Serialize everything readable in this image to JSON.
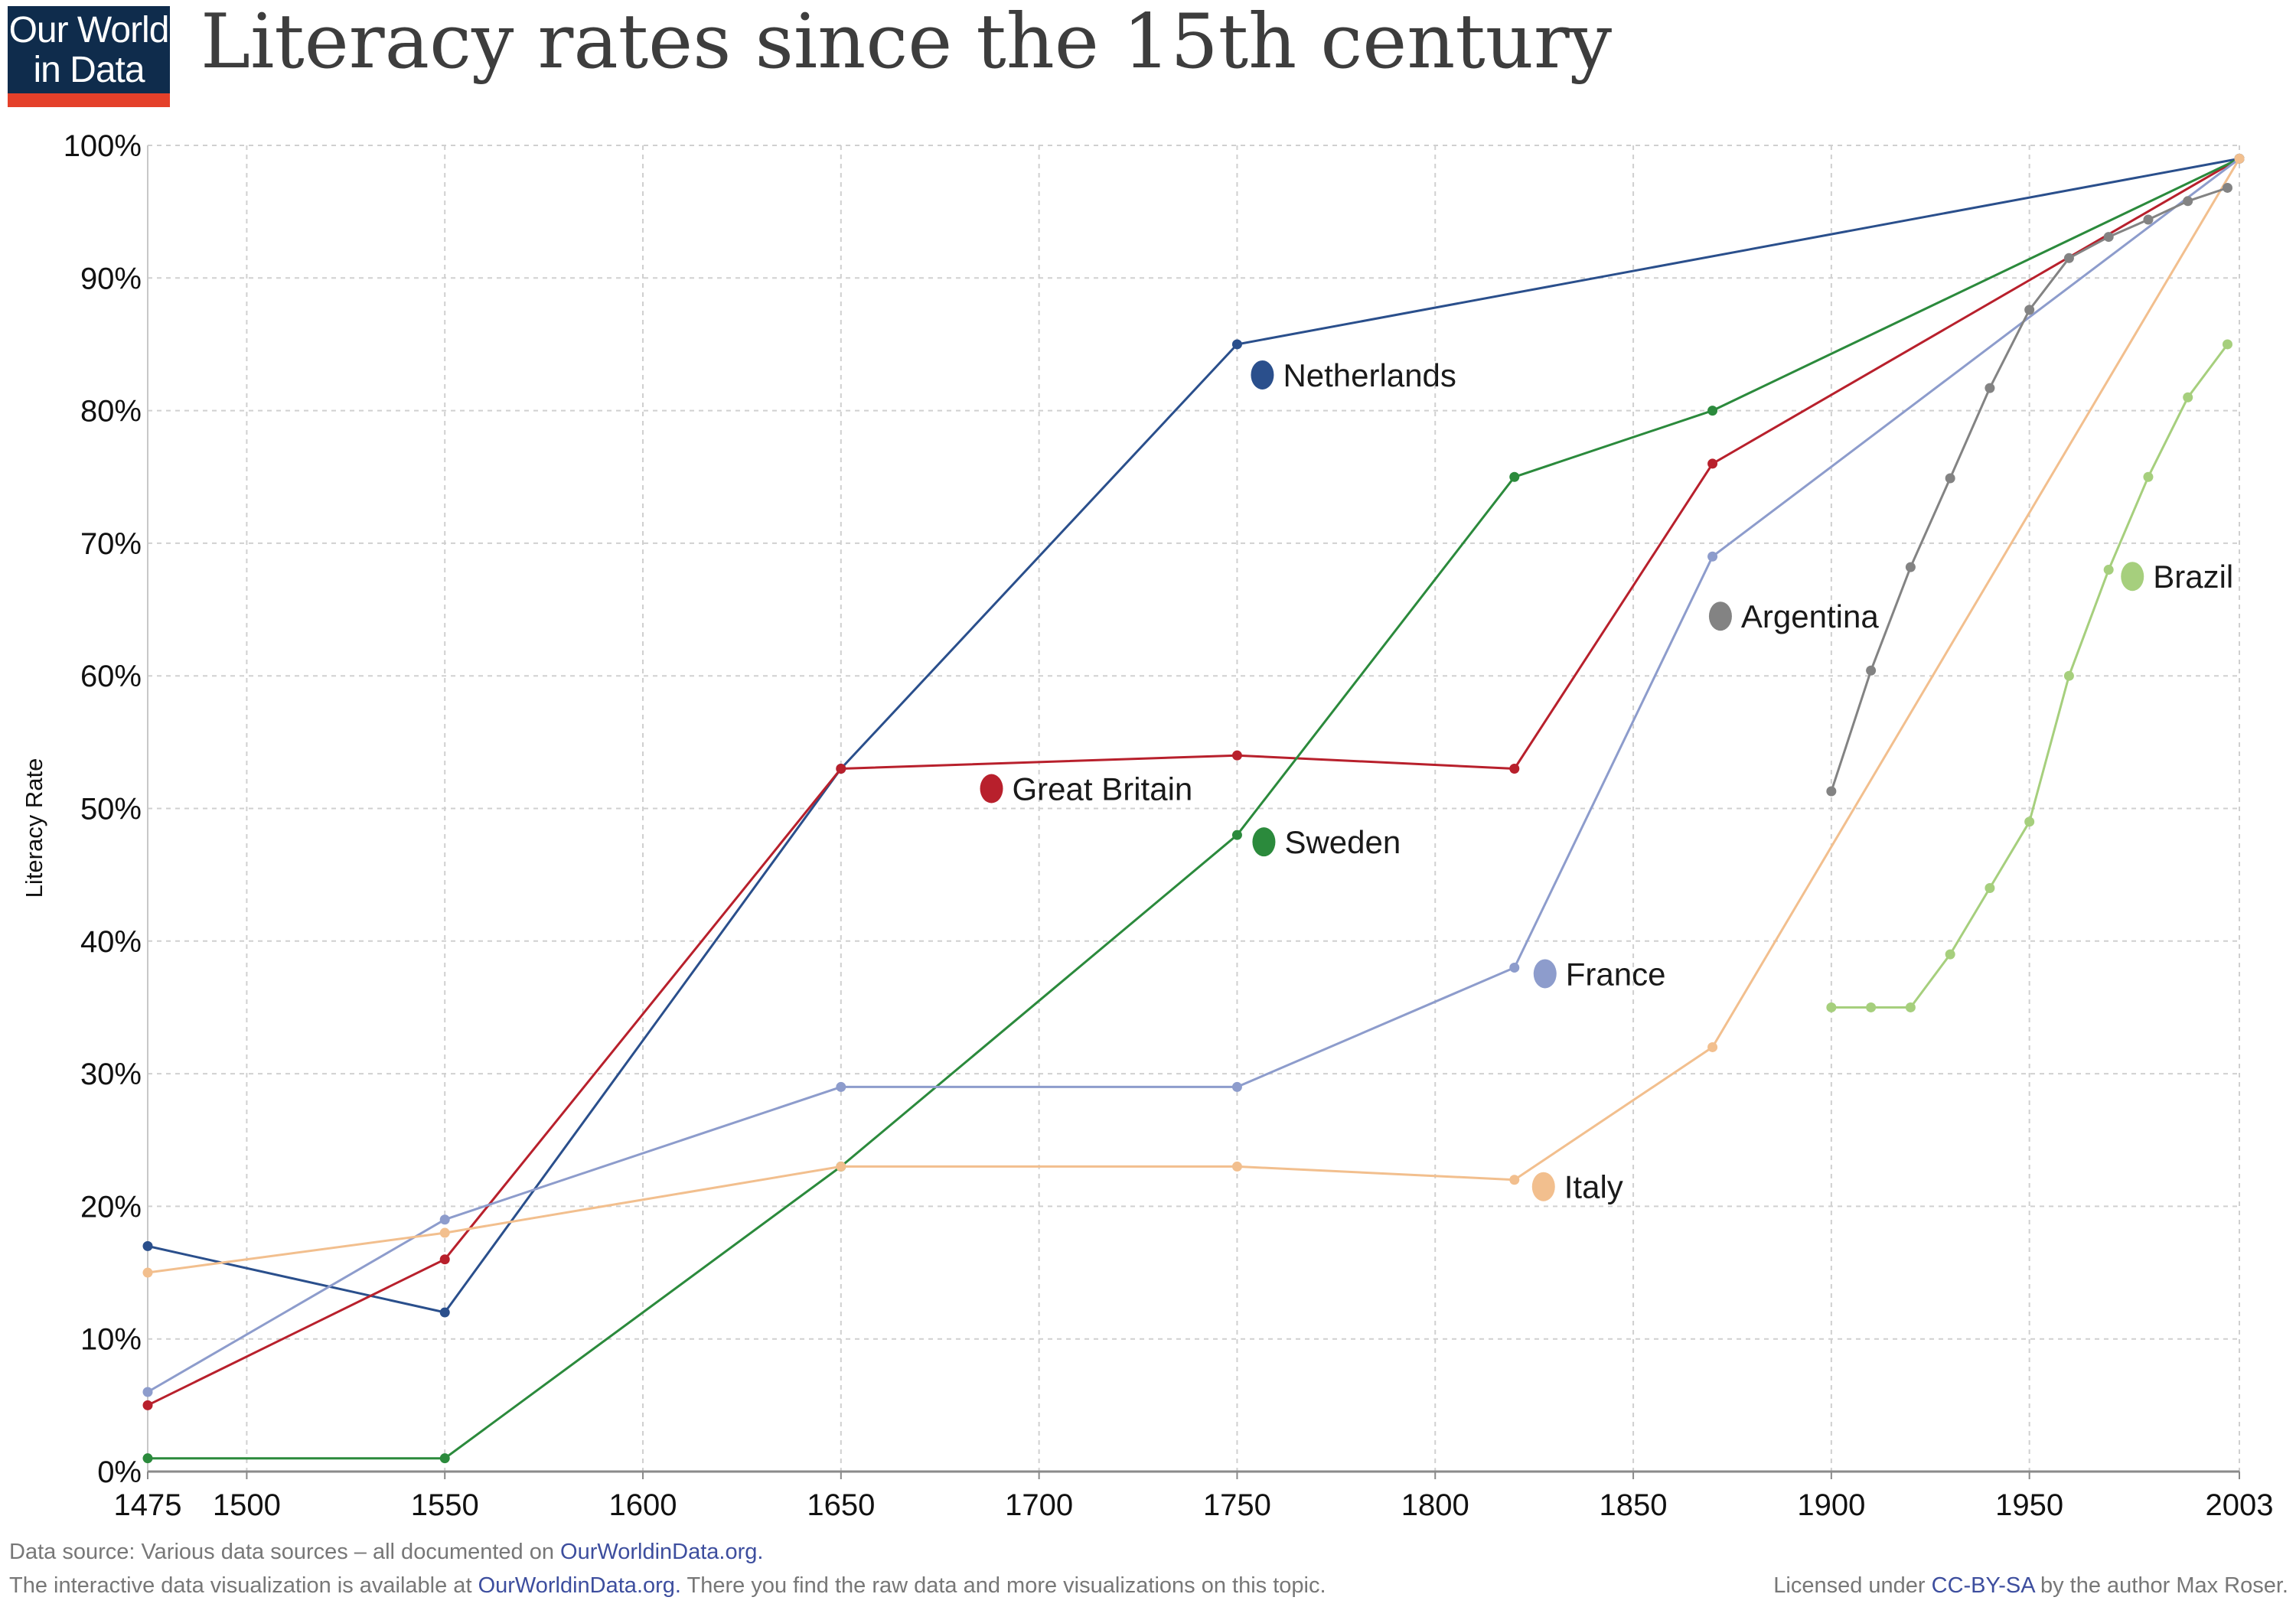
{
  "logo": {
    "line1": "Our World",
    "line2": "in Data"
  },
  "title": "Literacy rates since the 15th century",
  "footer": {
    "source_prefix": "Data source: Various data sources – all documented on ",
    "source_link": "OurWorldinData.org.",
    "interactive_prefix": "The interactive data visualization is available at ",
    "interactive_link": "OurWorldinData.org.",
    "interactive_suffix": " There you find the raw data and more visualizations on this topic.",
    "license_prefix": "Licensed under ",
    "license_link": "CC-BY-SA",
    "license_suffix": " by the author Max Roser."
  },
  "chart_data": {
    "type": "line",
    "title": "Literacy rates since the 15th century",
    "xlabel": "",
    "ylabel": "Literacy Rate",
    "xlim": [
      1475,
      2003
    ],
    "ylim": [
      0,
      100
    ],
    "xticks": [
      1475,
      1500,
      1550,
      1600,
      1650,
      1700,
      1750,
      1800,
      1850,
      1900,
      1950,
      2003
    ],
    "xtick_labels": [
      "1475",
      "1500",
      "1550",
      "1600",
      "1650",
      "1700",
      "1750",
      "1800",
      "1850",
      "1900",
      "1950",
      "2003"
    ],
    "yticks": [
      0,
      10,
      20,
      30,
      40,
      50,
      60,
      70,
      80,
      90,
      100
    ],
    "ytick_labels": [
      "0%",
      "10%",
      "20%",
      "30%",
      "40%",
      "50%",
      "60%",
      "70%",
      "80%",
      "90%",
      "100%"
    ],
    "grid": true,
    "series": [
      {
        "name": "Netherlands",
        "color": "#2a4f8c",
        "x": [
          1475,
          1550,
          1650,
          1750,
          2003
        ],
        "y": [
          17,
          12,
          53,
          85,
          99
        ]
      },
      {
        "name": "Great Britain",
        "color": "#b8202c",
        "x": [
          1475,
          1550,
          1650,
          1750,
          1820,
          1870,
          2003
        ],
        "y": [
          5,
          16,
          53,
          54,
          53,
          76,
          99
        ]
      },
      {
        "name": "Sweden",
        "color": "#2b8a3c",
        "x": [
          1475,
          1550,
          1650,
          1750,
          1820,
          1870,
          2003
        ],
        "y": [
          1,
          1,
          23,
          48,
          75,
          80,
          99
        ]
      },
      {
        "name": "France",
        "color": "#8d9ccc",
        "x": [
          1475,
          1550,
          1650,
          1750,
          1820,
          1870,
          2003
        ],
        "y": [
          6,
          19,
          29,
          29,
          38,
          69,
          99
        ]
      },
      {
        "name": "Italy",
        "color": "#f2bf8e",
        "x": [
          1475,
          1550,
          1650,
          1750,
          1820,
          1870,
          2003
        ],
        "y": [
          15,
          18,
          23,
          23,
          22,
          32,
          99
        ]
      },
      {
        "name": "Argentina",
        "color": "#838383",
        "x": [
          1900,
          1910,
          1920,
          1930,
          1940,
          1950,
          1960,
          1970,
          1980,
          1990,
          2000
        ],
        "y": [
          51.3,
          60.4,
          68.2,
          74.9,
          81.7,
          87.6,
          91.5,
          93.1,
          94.4,
          95.8,
          96.8
        ]
      },
      {
        "name": "Brazil",
        "color": "#a6cf7d",
        "x": [
          1900,
          1910,
          1920,
          1930,
          1940,
          1950,
          1960,
          1970,
          1980,
          1990,
          2000
        ],
        "y": [
          35,
          35,
          35,
          39,
          44,
          49,
          60,
          68,
          75,
          81,
          85
        ]
      }
    ]
  }
}
